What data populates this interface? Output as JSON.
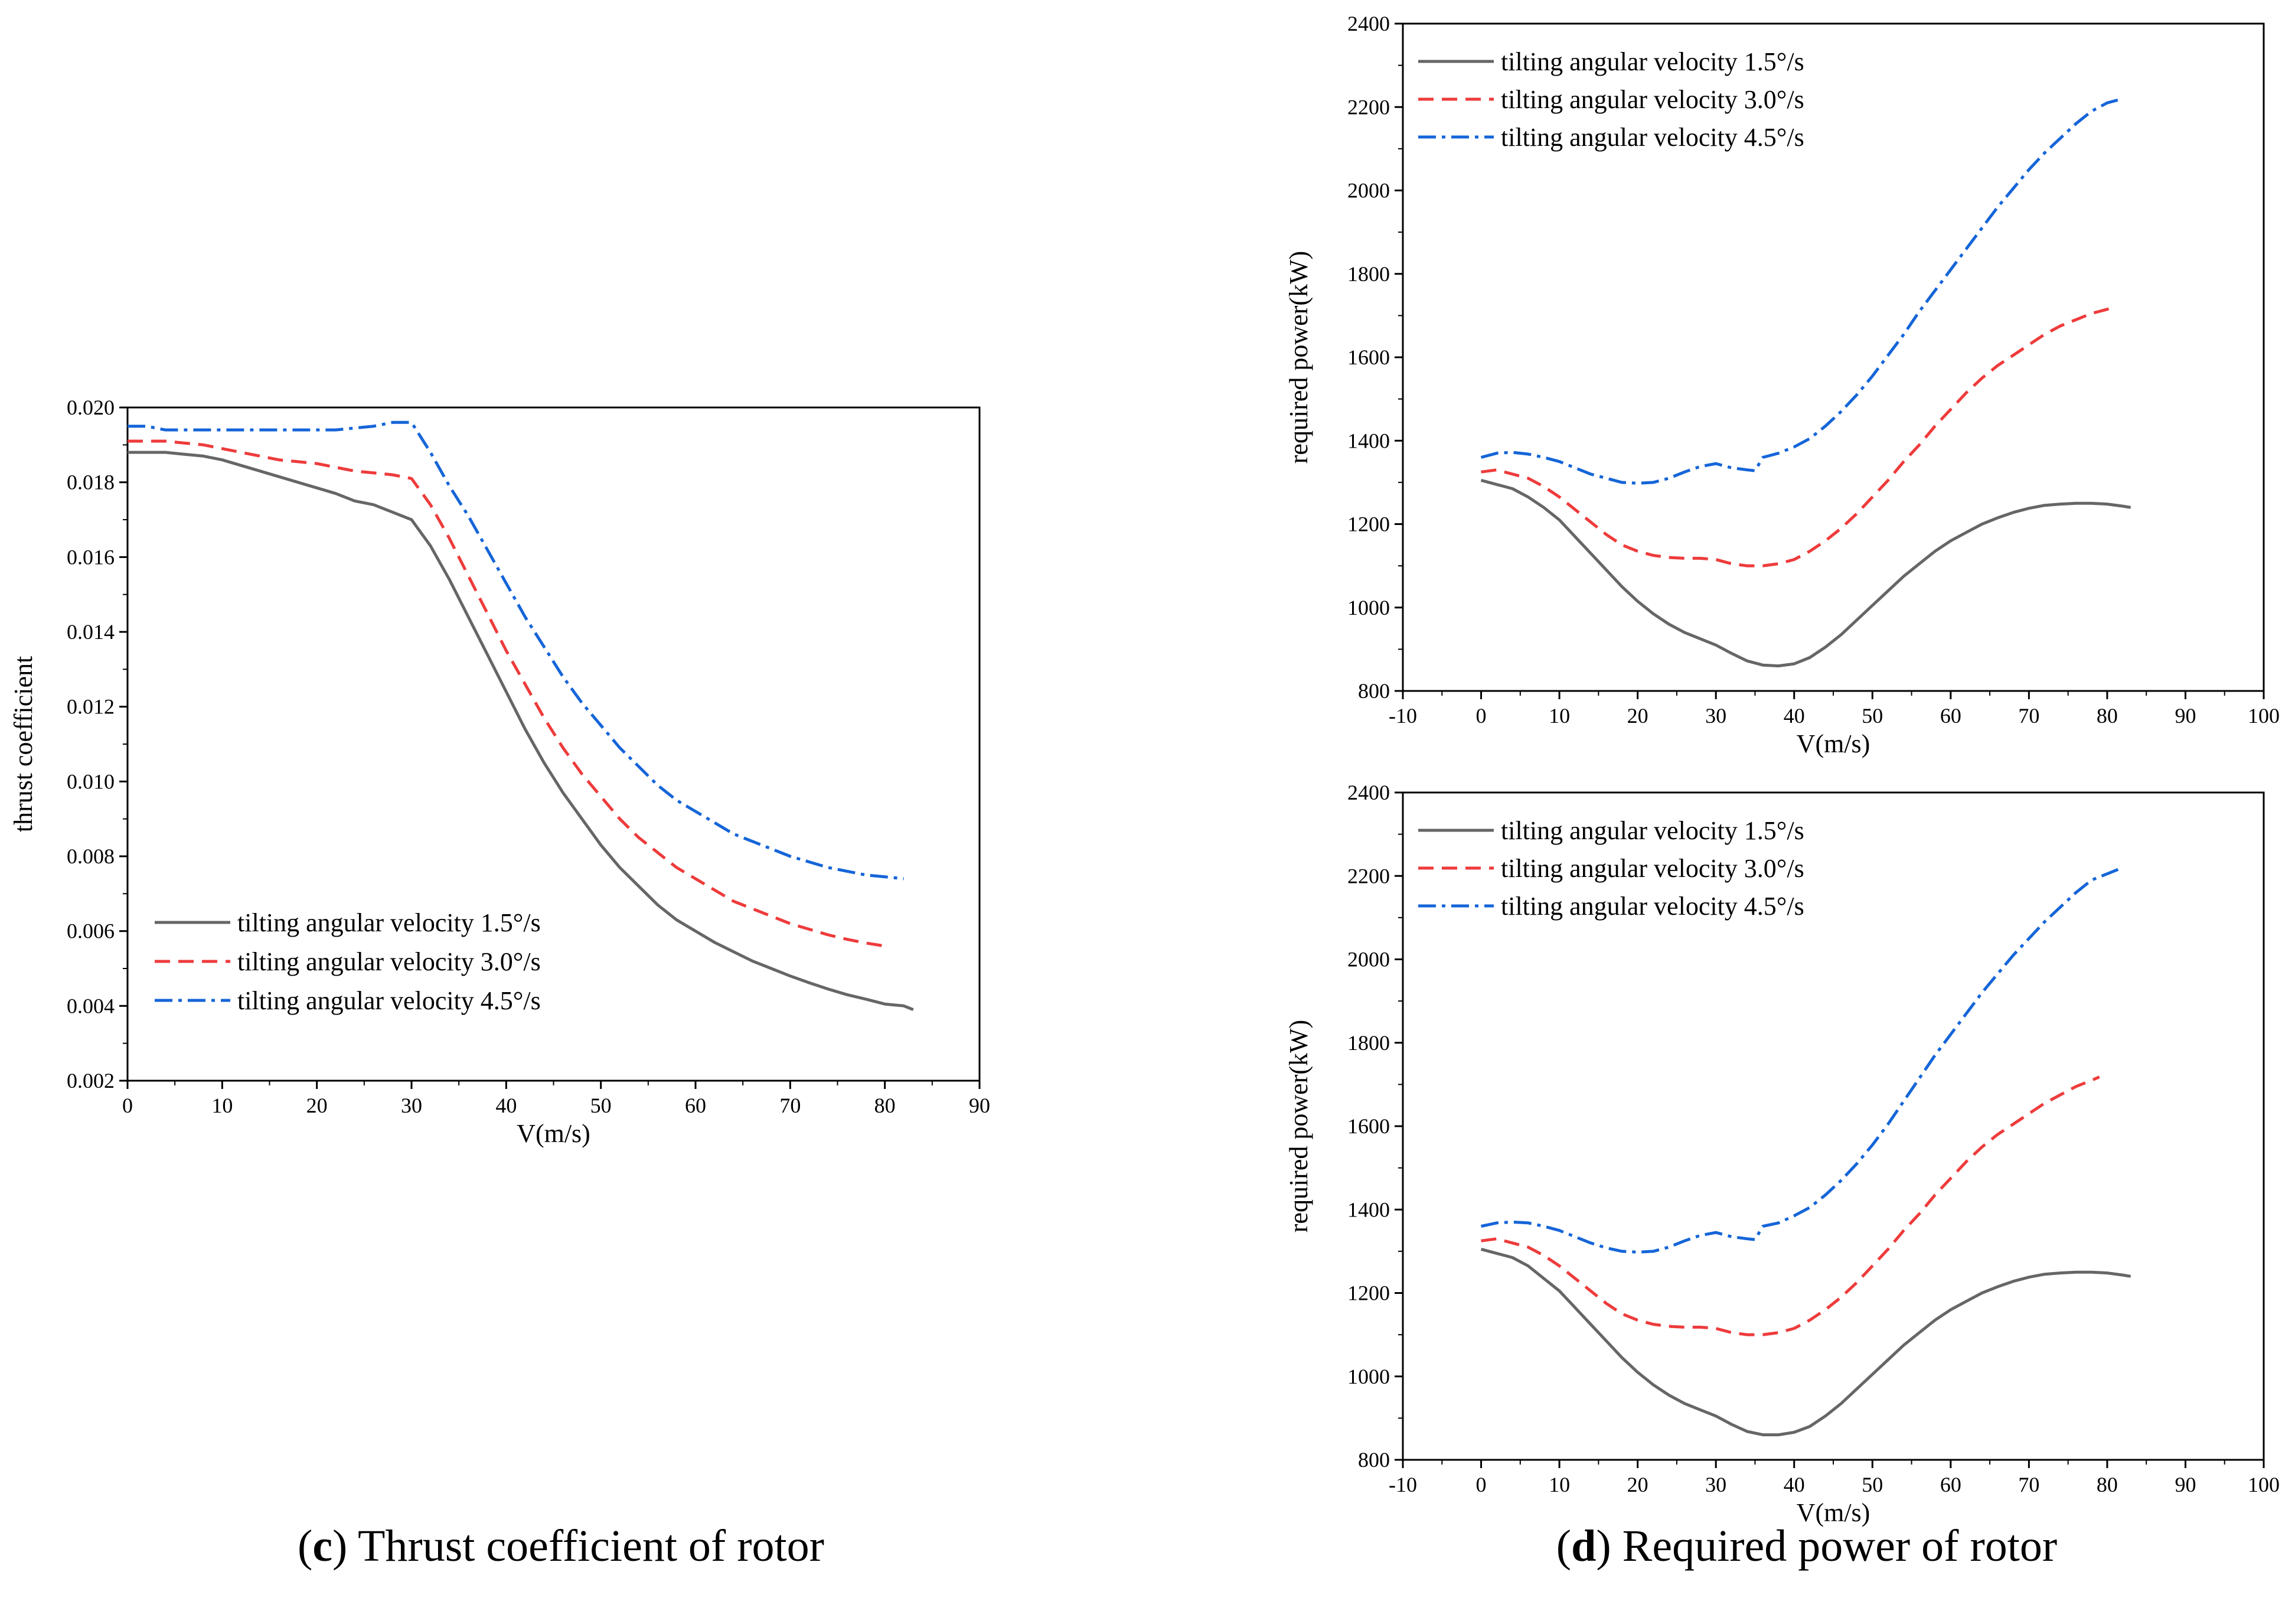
{
  "captions": {
    "c": {
      "open": "(",
      "letter": "c",
      "close": ")",
      "text": " Thrust coefficient of rotor"
    },
    "d": {
      "open": "(",
      "letter": "d",
      "close": ")",
      "text": " Required power of rotor"
    }
  },
  "chart_data": [
    {
      "id": "c",
      "type": "line",
      "title": "",
      "xlabel": "V(m/s)",
      "ylabel": "thrust coefficient",
      "xlim": [
        0,
        90
      ],
      "ylim": [
        0.002,
        0.02
      ],
      "xticks": [
        0,
        10,
        20,
        30,
        40,
        50,
        60,
        70,
        80,
        90
      ],
      "xtick_labels": [
        "0",
        "10",
        "20",
        "30",
        "40",
        "50",
        "60",
        "70",
        "80",
        "90"
      ],
      "yticks": [
        0.002,
        0.004,
        0.006,
        0.008,
        0.01,
        0.012,
        0.014,
        0.016,
        0.018,
        0.02
      ],
      "ytick_labels": [
        "0.002",
        "0.004",
        "0.006",
        "0.008",
        "0.010",
        "0.012",
        "0.014",
        "0.016",
        "0.018",
        "0.020"
      ],
      "grid": false,
      "legend_position": "bottom-left",
      "series": [
        {
          "name": "tilting angular velocity 1.5°/s",
          "color": "#666666",
          "dash": "solid",
          "x": [
            0,
            2,
            4,
            6,
            8,
            10,
            12,
            14,
            16,
            18,
            20,
            22,
            24,
            26,
            28,
            30,
            32,
            34,
            36,
            38,
            40,
            42,
            44,
            46,
            48,
            50,
            52,
            54,
            56,
            58,
            60,
            62,
            64,
            66,
            68,
            70,
            72,
            74,
            76,
            78,
            80,
            82,
            83
          ],
          "y": [
            0.0188,
            0.0188,
            0.0188,
            0.01875,
            0.0187,
            0.0186,
            0.01845,
            0.0183,
            0.01815,
            0.018,
            0.01785,
            0.0177,
            0.0175,
            0.0174,
            0.0172,
            0.017,
            0.0163,
            0.0154,
            0.0144,
            0.0134,
            0.0124,
            0.0114,
            0.0105,
            0.0097,
            0.009,
            0.0083,
            0.0077,
            0.0072,
            0.0067,
            0.0063,
            0.006,
            0.0057,
            0.00545,
            0.0052,
            0.005,
            0.0048,
            0.00462,
            0.00445,
            0.0043,
            0.00418,
            0.00405,
            0.004,
            0.0039
          ]
        },
        {
          "name": "tilting angular velocity 3.0°/s",
          "color": "#ee3b3b",
          "dash": "dashed",
          "x": [
            0,
            2,
            4,
            6,
            8,
            10,
            12,
            14,
            16,
            18,
            20,
            22,
            24,
            26,
            28,
            30,
            32,
            34,
            36,
            38,
            40,
            42,
            44,
            46,
            48,
            50,
            52,
            54,
            56,
            58,
            60,
            62,
            64,
            66,
            68,
            70,
            72,
            74,
            76,
            78,
            80
          ],
          "y": [
            0.0191,
            0.0191,
            0.0191,
            0.01905,
            0.019,
            0.0189,
            0.0188,
            0.0187,
            0.0186,
            0.01855,
            0.0185,
            0.0184,
            0.0183,
            0.01825,
            0.0182,
            0.0181,
            0.0174,
            0.0165,
            0.0155,
            0.0145,
            0.0135,
            0.0126,
            0.0117,
            0.0109,
            0.0102,
            0.0096,
            0.009,
            0.0085,
            0.0081,
            0.0077,
            0.0074,
            0.0071,
            0.0068,
            0.0066,
            0.0064,
            0.0062,
            0.00605,
            0.0059,
            0.00578,
            0.00568,
            0.0056
          ]
        },
        {
          "name": "tilting angular velocity 4.5°/s",
          "color": "#1565d8",
          "dash": "dashdot",
          "x": [
            0,
            2,
            4,
            6,
            8,
            10,
            12,
            14,
            16,
            18,
            20,
            22,
            24,
            26,
            28,
            30,
            32,
            34,
            36,
            38,
            40,
            42,
            44,
            46,
            48,
            50,
            52,
            54,
            56,
            58,
            60,
            62,
            64,
            66,
            68,
            70,
            72,
            74,
            76,
            78,
            80,
            82
          ],
          "y": [
            0.0195,
            0.0195,
            0.0194,
            0.0194,
            0.0194,
            0.0194,
            0.0194,
            0.0194,
            0.0194,
            0.0194,
            0.0194,
            0.0194,
            0.01945,
            0.0195,
            0.0196,
            0.0196,
            0.0188,
            0.0179,
            0.0171,
            0.0162,
            0.0153,
            0.0144,
            0.0136,
            0.0128,
            0.0121,
            0.0115,
            0.0109,
            0.0104,
            0.0099,
            0.0095,
            0.0092,
            0.0089,
            0.0086,
            0.0084,
            0.0082,
            0.008,
            0.00785,
            0.0077,
            0.0076,
            0.0075,
            0.00745,
            0.0074
          ]
        }
      ]
    },
    {
      "id": "d-top",
      "type": "line",
      "title": "",
      "xlabel": "V(m/s)",
      "ylabel": "required power(kW)",
      "xlim": [
        -10,
        100
      ],
      "ylim": [
        800,
        2400
      ],
      "xticks": [
        -10,
        0,
        10,
        20,
        30,
        40,
        50,
        60,
        70,
        80,
        90,
        100
      ],
      "xtick_labels": [
        "-10",
        "0",
        "10",
        "20",
        "30",
        "40",
        "50",
        "60",
        "70",
        "80",
        "90",
        "100"
      ],
      "yticks": [
        800,
        1000,
        1200,
        1400,
        1600,
        1800,
        2000,
        2200,
        2400
      ],
      "ytick_labels": [
        "800",
        "1000",
        "1200",
        "1400",
        "1600",
        "1800",
        "2000",
        "2200",
        "2400"
      ],
      "grid": false,
      "legend_position": "top-left",
      "series": [
        {
          "name": "tilting angular velocity 1.5°/s",
          "color": "#666666",
          "dash": "solid",
          "x": [
            0,
            2,
            4,
            6,
            8,
            10,
            12,
            14,
            16,
            18,
            20,
            22,
            24,
            26,
            28,
            30,
            32,
            34,
            36,
            38,
            40,
            42,
            44,
            46,
            48,
            50,
            52,
            54,
            56,
            58,
            60,
            62,
            64,
            66,
            68,
            70,
            72,
            74,
            76,
            78,
            80,
            82,
            83
          ],
          "y": [
            1305,
            1295,
            1285,
            1265,
            1240,
            1210,
            1170,
            1130,
            1090,
            1050,
            1015,
            985,
            960,
            940,
            925,
            910,
            890,
            872,
            862,
            860,
            865,
            880,
            905,
            935,
            970,
            1005,
            1040,
            1075,
            1105,
            1135,
            1160,
            1180,
            1200,
            1215,
            1228,
            1238,
            1245,
            1248,
            1250,
            1250,
            1248,
            1243,
            1240
          ]
        },
        {
          "name": "tilting angular velocity 3.0°/s",
          "color": "#ee3b3b",
          "dash": "dashed",
          "x": [
            0,
            2,
            4,
            6,
            8,
            10,
            12,
            14,
            16,
            18,
            20,
            22,
            24,
            26,
            28,
            30,
            32,
            34,
            36,
            38,
            40,
            42,
            44,
            46,
            48,
            50,
            52,
            54,
            56,
            58,
            60,
            62,
            64,
            66,
            68,
            70,
            72,
            74,
            76,
            78,
            80,
            81
          ],
          "y": [
            1325,
            1330,
            1320,
            1310,
            1290,
            1265,
            1235,
            1205,
            1175,
            1150,
            1135,
            1125,
            1120,
            1118,
            1118,
            1115,
            1105,
            1100,
            1100,
            1105,
            1115,
            1135,
            1160,
            1190,
            1225,
            1265,
            1305,
            1350,
            1390,
            1435,
            1475,
            1515,
            1550,
            1580,
            1605,
            1630,
            1655,
            1675,
            1690,
            1705,
            1715,
            1725
          ]
        },
        {
          "name": "tilting angular velocity 4.5°/s",
          "color": "#1565d8",
          "dash": "dashdot",
          "x": [
            0,
            2,
            4,
            6,
            8,
            10,
            12,
            14,
            16,
            18,
            20,
            22,
            24,
            26,
            28,
            30,
            32,
            34,
            35,
            36,
            38,
            40,
            42,
            44,
            46,
            48,
            50,
            52,
            54,
            56,
            58,
            60,
            62,
            64,
            66,
            68,
            70,
            72,
            74,
            76,
            78,
            80,
            82
          ],
          "y": [
            1360,
            1370,
            1372,
            1368,
            1360,
            1350,
            1335,
            1320,
            1310,
            1300,
            1298,
            1300,
            1310,
            1325,
            1338,
            1345,
            1335,
            1330,
            1328,
            1360,
            1370,
            1385,
            1405,
            1435,
            1470,
            1510,
            1555,
            1605,
            1655,
            1710,
            1760,
            1810,
            1860,
            1910,
            1960,
            2005,
            2050,
            2090,
            2125,
            2160,
            2190,
            2210,
            2220
          ]
        }
      ]
    },
    {
      "id": "d-bottom",
      "type": "line",
      "title": "",
      "xlabel": "V(m/s)",
      "ylabel": "required power(kW)",
      "xlim": [
        -10,
        100
      ],
      "ylim": [
        800,
        2400
      ],
      "xticks": [
        -10,
        0,
        10,
        20,
        30,
        40,
        50,
        60,
        70,
        80,
        90,
        100
      ],
      "xtick_labels": [
        "-10",
        "0",
        "10",
        "20",
        "30",
        "40",
        "50",
        "60",
        "70",
        "80",
        "90",
        "100"
      ],
      "yticks": [
        800,
        1000,
        1200,
        1400,
        1600,
        1800,
        2000,
        2200,
        2400
      ],
      "ytick_labels": [
        "800",
        "1000",
        "1200",
        "1400",
        "1600",
        "1800",
        "2000",
        "2200",
        "2400"
      ],
      "grid": false,
      "legend_position": "top-left",
      "series": [
        {
          "name": "tilting angular velocity 1.5°/s",
          "color": "#666666",
          "dash": "solid",
          "x": [
            0,
            2,
            4,
            6,
            8,
            10,
            12,
            14,
            16,
            18,
            20,
            22,
            24,
            26,
            28,
            30,
            32,
            34,
            36,
            38,
            40,
            42,
            44,
            46,
            48,
            50,
            52,
            54,
            56,
            58,
            60,
            62,
            64,
            66,
            68,
            70,
            72,
            74,
            76,
            78,
            80,
            82,
            83
          ],
          "y": [
            1305,
            1295,
            1285,
            1265,
            1235,
            1205,
            1165,
            1125,
            1085,
            1045,
            1010,
            980,
            955,
            935,
            920,
            905,
            885,
            868,
            860,
            860,
            866,
            880,
            905,
            935,
            970,
            1005,
            1040,
            1075,
            1105,
            1135,
            1160,
            1180,
            1200,
            1215,
            1228,
            1238,
            1245,
            1248,
            1250,
            1250,
            1248,
            1243,
            1240
          ]
        },
        {
          "name": "tilting angular velocity 3.0°/s",
          "color": "#ee3b3b",
          "dash": "dashed",
          "x": [
            0,
            2,
            4,
            6,
            8,
            10,
            12,
            14,
            16,
            18,
            20,
            22,
            24,
            26,
            28,
            30,
            32,
            34,
            36,
            38,
            40,
            42,
            44,
            46,
            48,
            50,
            52,
            54,
            56,
            58,
            60,
            62,
            64,
            66,
            68,
            70,
            72,
            74,
            76,
            78,
            79
          ],
          "y": [
            1325,
            1330,
            1320,
            1310,
            1290,
            1265,
            1235,
            1205,
            1175,
            1150,
            1135,
            1125,
            1120,
            1118,
            1118,
            1115,
            1105,
            1100,
            1100,
            1105,
            1115,
            1135,
            1160,
            1190,
            1225,
            1265,
            1305,
            1350,
            1390,
            1435,
            1475,
            1515,
            1550,
            1580,
            1605,
            1630,
            1655,
            1675,
            1695,
            1710,
            1718
          ]
        },
        {
          "name": "tilting angular velocity 4.5°/s",
          "color": "#1565d8",
          "dash": "dashdot",
          "x": [
            0,
            2,
            4,
            6,
            8,
            10,
            12,
            14,
            16,
            18,
            20,
            22,
            24,
            26,
            28,
            30,
            32,
            34,
            35,
            36,
            38,
            40,
            42,
            44,
            46,
            48,
            50,
            52,
            54,
            56,
            58,
            60,
            62,
            64,
            66,
            68,
            70,
            72,
            74,
            76,
            78,
            80,
            82
          ],
          "y": [
            1360,
            1368,
            1370,
            1368,
            1360,
            1350,
            1335,
            1320,
            1308,
            1300,
            1298,
            1300,
            1310,
            1325,
            1338,
            1345,
            1335,
            1330,
            1328,
            1360,
            1368,
            1385,
            1405,
            1435,
            1470,
            1510,
            1555,
            1605,
            1660,
            1715,
            1770,
            1820,
            1870,
            1920,
            1965,
            2010,
            2050,
            2090,
            2125,
            2160,
            2190,
            2205,
            2220
          ]
        }
      ]
    }
  ]
}
